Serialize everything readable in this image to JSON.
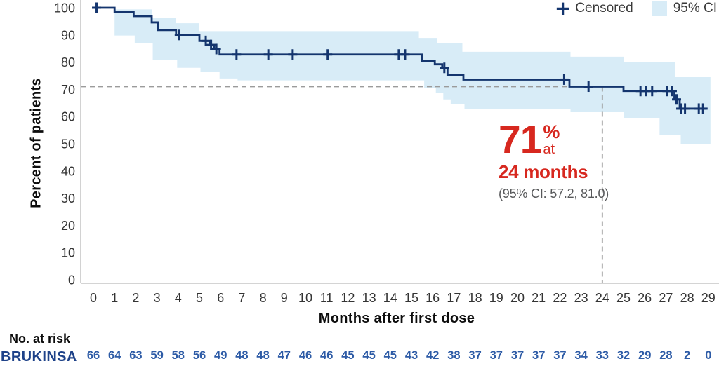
{
  "legend": {
    "censored_label": "Censored",
    "ci_label": "95% CI"
  },
  "annotation": {
    "value": "71",
    "percent": "%",
    "at_word": "at",
    "timepoint": "24 months",
    "ci_text": "(95% CI: 57.2, 81.0)"
  },
  "risk_table": {
    "heading": "No. at risk",
    "row_label": "BRUKINSA",
    "values": [
      66,
      64,
      63,
      59,
      58,
      56,
      49,
      48,
      48,
      47,
      46,
      46,
      45,
      45,
      45,
      43,
      42,
      38,
      37,
      37,
      37,
      37,
      37,
      34,
      33,
      32,
      29,
      28,
      2,
      0
    ]
  },
  "chart_data": {
    "type": "line",
    "subtype": "kaplan-meier-step",
    "title": "",
    "xlabel": "Months after first dose",
    "ylabel": "Percent of patients",
    "xlim": [
      0,
      29
    ],
    "ylim": [
      0,
      100
    ],
    "xticks": [
      0,
      1,
      2,
      3,
      4,
      5,
      6,
      7,
      8,
      9,
      10,
      11,
      12,
      13,
      14,
      15,
      16,
      17,
      18,
      19,
      20,
      21,
      22,
      23,
      24,
      25,
      26,
      27,
      28,
      29
    ],
    "yticks": [
      0,
      10,
      20,
      30,
      40,
      50,
      60,
      70,
      80,
      90,
      100
    ],
    "grid": false,
    "legend_position": "top-right",
    "legend_entries": [
      "Censored",
      "95% CI"
    ],
    "series": [
      {
        "name": "BRUKINSA",
        "points": [
          [
            0,
            100
          ],
          [
            1.0,
            98.5
          ],
          [
            1.9,
            96.9
          ],
          [
            2.75,
            94.6
          ],
          [
            3.05,
            91.8
          ],
          [
            3.9,
            90.0
          ],
          [
            5.0,
            87.8
          ],
          [
            5.5,
            86.3
          ],
          [
            5.7,
            84.8
          ],
          [
            5.95,
            82.8
          ],
          [
            15.5,
            80.5
          ],
          [
            16.1,
            79.2
          ],
          [
            16.45,
            77.9
          ],
          [
            16.7,
            75.3
          ],
          [
            17.45,
            73.6
          ],
          [
            22.45,
            71.0
          ],
          [
            25.0,
            69.4
          ],
          [
            27.4,
            66.3
          ],
          [
            27.65,
            62.9
          ]
        ],
        "end_month": 28.9
      }
    ],
    "ci_band": {
      "upper": [
        [
          1.0,
          99.4
        ],
        [
          2.75,
          96.4
        ],
        [
          3.9,
          94.3
        ],
        [
          5.0,
          91.4
        ],
        [
          15.35,
          88.9
        ],
        [
          16.2,
          86.9
        ],
        [
          17.4,
          83.8
        ],
        [
          22.5,
          82.0
        ],
        [
          25.0,
          79.9
        ],
        [
          27.45,
          74.5
        ]
      ],
      "lower": [
        [
          1.0,
          89.8
        ],
        [
          1.95,
          86.9
        ],
        [
          2.8,
          80.9
        ],
        [
          3.95,
          77.9
        ],
        [
          5.05,
          76.3
        ],
        [
          5.95,
          74.0
        ],
        [
          6.8,
          73.3
        ],
        [
          15.6,
          70.6
        ],
        [
          16.15,
          68.6
        ],
        [
          16.5,
          66.3
        ],
        [
          16.85,
          64.7
        ],
        [
          17.5,
          62.9
        ],
        [
          22.5,
          61.6
        ],
        [
          25.0,
          59.3
        ],
        [
          26.7,
          53.1
        ],
        [
          27.7,
          49.9
        ]
      ],
      "end_month": 29.1
    },
    "censor_marks": [
      [
        0.15,
        100
      ],
      [
        4.05,
        90.0
      ],
      [
        5.3,
        87.8
      ],
      [
        5.55,
        86.3
      ],
      [
        5.8,
        84.8
      ],
      [
        6.75,
        82.8
      ],
      [
        8.25,
        82.8
      ],
      [
        9.4,
        82.8
      ],
      [
        11.05,
        82.8
      ],
      [
        14.4,
        82.8
      ],
      [
        14.7,
        82.8
      ],
      [
        16.55,
        77.9
      ],
      [
        22.2,
        73.6
      ],
      [
        23.35,
        71.0
      ],
      [
        25.8,
        69.4
      ],
      [
        26.05,
        69.4
      ],
      [
        26.35,
        69.4
      ],
      [
        27.05,
        69.4
      ],
      [
        27.3,
        69.4
      ],
      [
        27.5,
        66.3
      ],
      [
        27.7,
        62.9
      ],
      [
        27.9,
        62.9
      ],
      [
        28.55,
        62.9
      ],
      [
        28.75,
        62.9
      ]
    ],
    "reference_lines": {
      "h_value": 71,
      "v_value": 24
    },
    "colors": {
      "curve": "#14356e",
      "band": "#d8ecf7",
      "accent_red": "#d7281f",
      "risk_blue": "#2d5ba6",
      "brand_navy": "#1e4289",
      "dash_gray": "#9b9b9b",
      "axis_gray": "#c6c6c6",
      "tick_text": "#343434"
    }
  }
}
